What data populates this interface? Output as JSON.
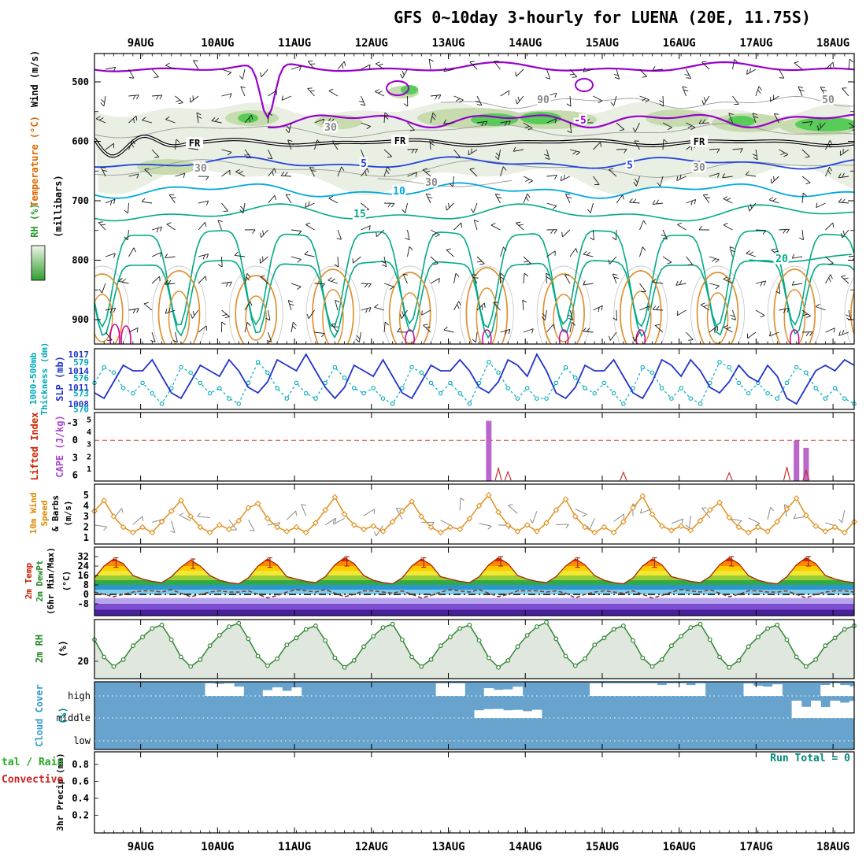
{
  "title": "GFS 0~10day 3-hourly for LUENA (20E, 11.75S)",
  "axis_labels": {
    "p1_wind": {
      "text": "Wind (m/s)",
      "color": "#000000"
    },
    "p1_temp": {
      "text": "Temperature (°C)",
      "color": "#dd6600"
    },
    "p1_rh": {
      "text": "RH (%)",
      "color": "#229922"
    },
    "p1_mb": {
      "text": "(millibars)",
      "color": "#000000"
    },
    "p2_thick1": {
      "text": "1000-500mb",
      "color": "#00aabb"
    },
    "p2_thick2": {
      "text": "Thickness (dm)",
      "color": "#00aabb"
    },
    "p2_slp": {
      "text": "SLP (mb)",
      "color": "#2233cc"
    },
    "p3_li": {
      "text": "Lifted Index",
      "color": "#cc2200"
    },
    "p3_cape": {
      "text": "CAPE (J/kg)",
      "color": "#aa44cc"
    },
    "p4_wind": {
      "text": "10m Wind",
      "color": "#dd8800"
    },
    "p4_speed": {
      "text": "Speed",
      "color": "#dd8800"
    },
    "p4_barbs": {
      "text": "& Barbs",
      "color": "#000000"
    },
    "p4_ms": {
      "text": "(m/s)",
      "color": "#000000"
    },
    "p5_temp": {
      "text": "2m Temp",
      "color": "#cc2200"
    },
    "p5_dewpt": {
      "text": "2m DewPt",
      "color": "#228822"
    },
    "p5_minmax": {
      "text": "(6hr Min/Max)",
      "color": "#000000"
    },
    "p5_c": {
      "text": "(°C)",
      "color": "#000000"
    },
    "p6_rh": {
      "text": "2m RH",
      "color": "#228822"
    },
    "p6_pct": {
      "text": "(%)",
      "color": "#000000"
    },
    "p7_cloud": {
      "text": "Cloud Cover",
      "color": "#3399cc"
    },
    "p7_pct": {
      "text": "(%)",
      "color": "#008888"
    },
    "p8_total": {
      "text": "tal / Rain",
      "color": "#22aa22"
    },
    "p8_conv": {
      "text": "Convective",
      "color": "#cc2222"
    },
    "p8_precip": {
      "text": "3hr Precip (mm)",
      "color": "#000000"
    }
  },
  "chart_data": {
    "type": "line",
    "subtype": "meteogram",
    "time_step_hours": 3,
    "n_points": 80,
    "dates": [
      "9AUG",
      "10AUG",
      "11AUG",
      "12AUG",
      "13AUG",
      "14AUG",
      "15AUG",
      "16AUG",
      "17AUG",
      "18AUG"
    ],
    "upper_air": {
      "y_ticks": [
        500,
        600,
        700,
        800,
        900
      ],
      "y_unit": "millibars",
      "temp_contours": [
        {
          "label": "-5",
          "color": "#9900cc"
        },
        {
          "label": "5",
          "color": "#2244dd"
        },
        {
          "label": "10",
          "color": "#00aadd"
        },
        {
          "label": "15",
          "color": "#00aa88"
        },
        {
          "label": "20",
          "color": "#00aa88"
        }
      ],
      "freezing_level_label": "FR",
      "rh_contour_labels": [
        "30",
        "50",
        "90"
      ],
      "rh_shading_colors": [
        "#e9efe2",
        "#c6dcaf",
        "#58cc58"
      ]
    },
    "slp_thickness": {
      "slp_ticks": [
        1017,
        1014,
        1011,
        1008
      ],
      "thickness_ticks": [
        579,
        576,
        573,
        570
      ],
      "slp_color": "#2233cc",
      "thickness_color": "#00aabb",
      "slp": [
        1010,
        1009,
        1012,
        1015,
        1014,
        1014,
        1016,
        1013,
        1010,
        1009,
        1012,
        1015,
        1014,
        1013,
        1016,
        1014,
        1011,
        1010,
        1012,
        1016,
        1015,
        1014,
        1017,
        1014,
        1011,
        1009,
        1011,
        1015,
        1014,
        1013,
        1016,
        1013,
        1010,
        1009,
        1012,
        1015,
        1014,
        1014,
        1016,
        1014,
        1011,
        1010,
        1012,
        1016,
        1015,
        1013,
        1017,
        1014,
        1010,
        1009,
        1011,
        1015,
        1014,
        1014,
        1016,
        1013,
        1010,
        1009,
        1012,
        1016,
        1015,
        1013,
        1016,
        1014,
        1011,
        1010,
        1012,
        1015,
        1013,
        1012,
        1015,
        1013,
        1009,
        1008,
        1011,
        1014,
        1015,
        1014,
        1016,
        1015
      ],
      "thickness": [
        575,
        578,
        577,
        574,
        573,
        575,
        573,
        571,
        574,
        578,
        577,
        575,
        573,
        574,
        572,
        571,
        575,
        579,
        577,
        574,
        572,
        575,
        573,
        572,
        575,
        578,
        576,
        574,
        573,
        574,
        572,
        571,
        574,
        578,
        577,
        575,
        573,
        575,
        573,
        571,
        575,
        579,
        577,
        574,
        572,
        574,
        572,
        572,
        575,
        578,
        576,
        574,
        573,
        575,
        573,
        571,
        574,
        578,
        577,
        574,
        572,
        574,
        572,
        571,
        575,
        579,
        578,
        575,
        573,
        575,
        573,
        572,
        575,
        578,
        577,
        574,
        572,
        574,
        572,
        571
      ]
    },
    "li_cape": {
      "li_ticks": [
        -3,
        0,
        3,
        6
      ],
      "cape_ticks": [
        5,
        4,
        3,
        2,
        1
      ],
      "li_color": "#cc2222",
      "li_zero_line_color": "#dd4444",
      "cape_color": "#bb66cc",
      "li_baseline": 6,
      "cape_bars": [
        [
          41,
          4.9
        ],
        [
          73,
          3.3
        ],
        [
          74,
          2.7
        ]
      ],
      "li_spikes": [
        [
          42,
          4.8
        ],
        [
          43,
          5.4
        ],
        [
          55,
          5.5
        ],
        [
          66,
          5.6
        ],
        [
          72,
          4.6
        ],
        [
          74,
          5.2
        ]
      ]
    },
    "wind10m": {
      "y_ticks": [
        5,
        4,
        3,
        2,
        1
      ],
      "color": "#e09020",
      "speed": [
        3.5,
        4.5,
        3,
        2,
        1.5,
        2,
        1.5,
        2.5,
        3.5,
        4.5,
        3,
        2,
        1.5,
        2.2,
        1.8,
        2.6,
        3.8,
        4.2,
        2.8,
        2,
        1.6,
        2,
        1.5,
        2.4,
        3.6,
        4.8,
        3.2,
        2.2,
        1.8,
        2.1,
        1.6,
        2.5,
        3.5,
        4.4,
        3,
        2,
        1.5,
        2,
        1.8,
        2.8,
        4,
        5,
        3.4,
        2.2,
        1.6,
        2.2,
        1.6,
        2.4,
        3.6,
        4.6,
        3,
        2,
        1.5,
        2,
        1.5,
        2.5,
        3.8,
        4.9,
        3.2,
        2.1,
        1.7,
        2.1,
        1.7,
        2.6,
        3.6,
        4.3,
        2.9,
        2,
        1.5,
        2,
        1.6,
        2.5,
        3.7,
        4.7,
        3.1,
        2.1,
        1.6,
        2,
        1.5,
        2.5
      ]
    },
    "t2m": {
      "y_ticks": [
        32,
        24,
        16,
        8,
        0,
        -8
      ],
      "temp_color": "#aa2200",
      "dewpt_color": "#7a3b22",
      "bands": [
        [
          40,
          28,
          "#dd2211"
        ],
        [
          28,
          24,
          "#ff8800"
        ],
        [
          24,
          20,
          "#ffcc00"
        ],
        [
          20,
          16,
          "#f0e832"
        ],
        [
          16,
          12,
          "#9ccc33"
        ],
        [
          12,
          8,
          "#33a944"
        ],
        [
          8,
          4,
          "#2d96d0"
        ],
        [
          4,
          0,
          "#82cdec"
        ],
        [
          0,
          -3,
          "#ffffff"
        ],
        [
          -3,
          -8,
          "#b9a5ee"
        ],
        [
          -8,
          -13,
          "#7b4fd0"
        ],
        [
          -13,
          -18,
          "#4a1f9e"
        ]
      ],
      "temp": [
        14,
        24,
        30,
        26,
        16,
        13,
        11,
        10,
        15,
        23,
        29,
        24,
        16,
        12,
        10,
        9,
        14,
        24,
        30,
        25,
        15,
        13,
        11,
        10,
        15,
        25,
        31,
        26,
        16,
        12,
        10,
        9,
        14,
        24,
        30,
        25,
        15,
        13,
        11,
        10,
        15,
        25,
        31,
        26,
        16,
        13,
        11,
        10,
        15,
        24,
        30,
        25,
        16,
        12,
        10,
        9,
        14,
        24,
        30,
        25,
        15,
        13,
        11,
        10,
        15,
        25,
        31,
        26,
        16,
        12,
        10,
        9,
        15,
        25,
        31,
        26,
        16,
        13,
        11,
        10
      ],
      "dewpt": [
        2,
        0,
        -2,
        0,
        2,
        3,
        3,
        2,
        4,
        1,
        -2,
        0,
        2,
        3,
        2,
        2,
        3,
        0,
        -3,
        -1,
        2,
        4,
        3,
        2,
        4,
        1,
        -2,
        0,
        3,
        3,
        2,
        1,
        3,
        0,
        -3,
        -1,
        2,
        4,
        3,
        2,
        4,
        1,
        -2,
        0,
        3,
        3,
        3,
        2,
        3,
        1,
        -3,
        0,
        2,
        3,
        2,
        1,
        3,
        0,
        -3,
        -1,
        2,
        4,
        3,
        2,
        4,
        1,
        -2,
        0,
        3,
        3,
        2,
        2,
        3,
        0,
        -3,
        0,
        2,
        3,
        3,
        2
      ]
    },
    "rh2m": {
      "y_ticks": [
        20
      ],
      "color": "#338833",
      "rh": [
        45,
        25,
        14,
        22,
        38,
        48,
        58,
        62,
        45,
        25,
        14,
        22,
        38,
        50,
        60,
        64,
        46,
        26,
        15,
        23,
        39,
        47,
        57,
        61,
        44,
        24,
        13,
        21,
        37,
        49,
        59,
        63,
        45,
        25,
        14,
        22,
        38,
        48,
        58,
        62,
        44,
        24,
        13,
        21,
        37,
        50,
        60,
        65,
        46,
        26,
        15,
        23,
        39,
        47,
        57,
        61,
        44,
        24,
        14,
        22,
        38,
        49,
        59,
        63,
        45,
        25,
        13,
        21,
        37,
        48,
        58,
        62,
        45,
        25,
        14,
        22,
        38,
        47,
        57,
        61
      ]
    },
    "cloud": {
      "rows": [
        "high",
        "middle",
        "low"
      ],
      "bg_color": "#67a3cd",
      "high_segments": [
        [
          12,
          15,
          0.6
        ],
        [
          18,
          21,
          0.4
        ],
        [
          36,
          38,
          0.85
        ],
        [
          41,
          44,
          0.45
        ],
        [
          52,
          63,
          0.85
        ],
        [
          68,
          71,
          0.6
        ],
        [
          76,
          79,
          0.75
        ]
      ],
      "middle_segments": [
        [
          40,
          46,
          0.5
        ],
        [
          73,
          79,
          0.85
        ]
      ],
      "low_segments": []
    },
    "precip": {
      "y_ticks": [
        0.2,
        0.4,
        0.6,
        0.8
      ],
      "run_total_label": "Run Total = 0",
      "run_total_color": "#008877",
      "values_all_zero": true
    }
  }
}
